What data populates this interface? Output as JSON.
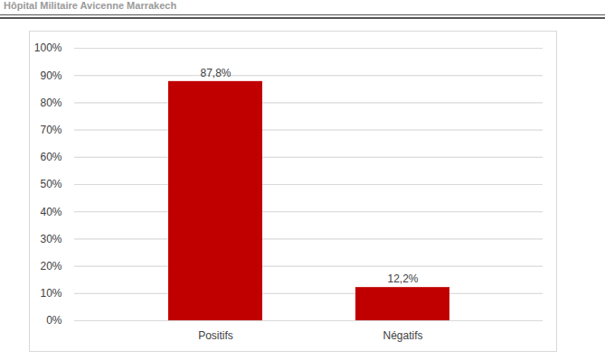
{
  "header": {
    "text": "Hôpital Militaire Avicenne Marrakech"
  },
  "chart_data": {
    "type": "bar",
    "categories": [
      "Positifs",
      "Négatifs"
    ],
    "values": [
      87.8,
      12.2
    ],
    "value_labels": [
      "87,8%",
      "12,2%"
    ],
    "data_labels": true,
    "color": "#c00000",
    "ylim": [
      0,
      100
    ],
    "yticks": [
      {
        "value": 0,
        "label": "0%"
      },
      {
        "value": 10,
        "label": "10%"
      },
      {
        "value": 20,
        "label": "20%"
      },
      {
        "value": 30,
        "label": "30%"
      },
      {
        "value": 40,
        "label": "40%"
      },
      {
        "value": 50,
        "label": "50%"
      },
      {
        "value": 60,
        "label": "60%"
      },
      {
        "value": 70,
        "label": "70%"
      },
      {
        "value": 80,
        "label": "80%"
      },
      {
        "value": 90,
        "label": "90%"
      },
      {
        "value": 100,
        "label": "100%"
      }
    ],
    "grid": true
  }
}
